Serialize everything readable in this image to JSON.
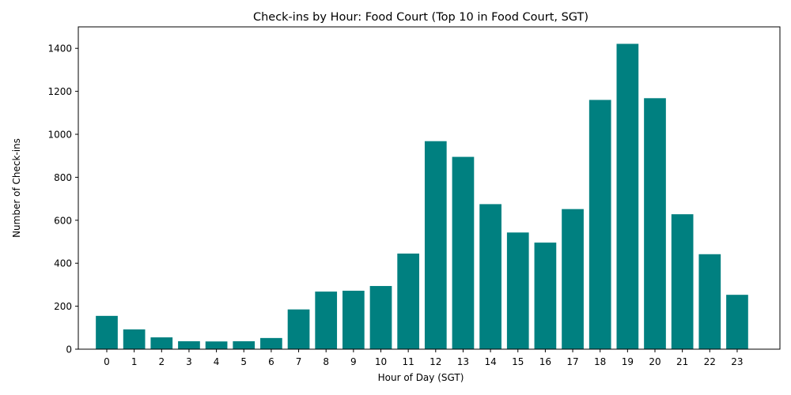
{
  "chart_data": {
    "type": "bar",
    "title": "Check-ins by Hour: Food Court (Top 10 in Food Court, SGT)",
    "xlabel": "Hour of Day (SGT)",
    "ylabel": "Number of Check-ins",
    "categories": [
      "0",
      "1",
      "2",
      "3",
      "4",
      "5",
      "6",
      "7",
      "8",
      "9",
      "10",
      "11",
      "12",
      "13",
      "14",
      "15",
      "16",
      "17",
      "18",
      "19",
      "20",
      "21",
      "22",
      "23"
    ],
    "values": [
      155,
      92,
      55,
      37,
      36,
      37,
      52,
      185,
      268,
      272,
      294,
      445,
      968,
      895,
      675,
      543,
      496,
      652,
      1160,
      1421,
      1168,
      628,
      442,
      253
    ],
    "ylim": [
      0,
      1500
    ],
    "yticks": [
      0,
      200,
      400,
      600,
      800,
      1000,
      1200,
      1400
    ],
    "grid": false,
    "legend": "none",
    "bar_color": "#008080"
  }
}
